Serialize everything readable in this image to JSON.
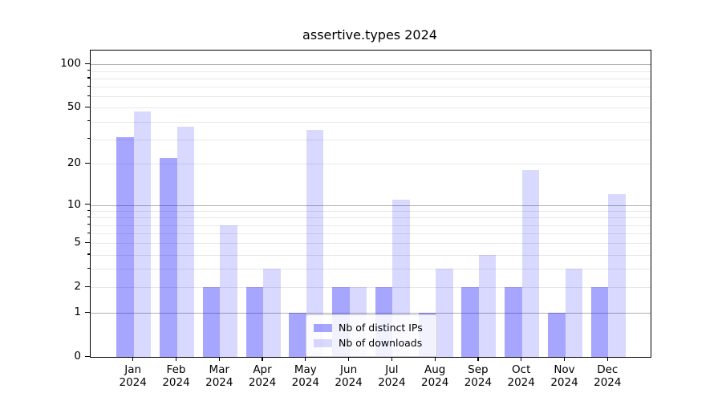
{
  "chart_data": {
    "type": "bar",
    "title": "assertive.types 2024",
    "categories": [
      "Jan",
      "Feb",
      "Mar",
      "Apr",
      "May",
      "Jun",
      "Jul",
      "Aug",
      "Sep",
      "Oct",
      "Nov",
      "Dec"
    ],
    "category_year": "2024",
    "series": [
      {
        "name": "Nb of distinct IPs",
        "color": "rgba(0,0,255,0.35)",
        "values": [
          31,
          22,
          2,
          2,
          1,
          2,
          2,
          1,
          2,
          2,
          1,
          2
        ]
      },
      {
        "name": "Nb of downloads",
        "color": "rgba(0,0,255,0.15)",
        "values": [
          47,
          37,
          7,
          3,
          35,
          2,
          11,
          3,
          4,
          18,
          3,
          12
        ]
      }
    ],
    "yscale": "log1p",
    "y_axis": {
      "major_ticks": [
        0,
        1,
        2,
        5,
        10,
        20,
        50,
        100
      ],
      "minor_ticks": [
        3,
        4,
        6,
        7,
        8,
        9,
        30,
        40,
        60,
        70,
        80,
        90
      ],
      "decade_gridlines": [
        1,
        10,
        100
      ],
      "ylim": [
        0,
        125
      ],
      "grid_minor_color": "#e8e8e8",
      "grid_major_color": "#b0b0b0"
    },
    "xlabel": "",
    "ylabel": "",
    "grid": true,
    "legend_position": "lower center"
  }
}
